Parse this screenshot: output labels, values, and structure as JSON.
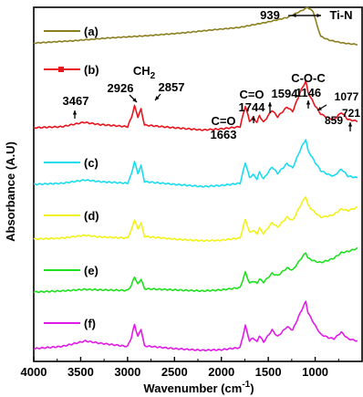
{
  "chart_data": {
    "type": "line",
    "xlabel": "Wavenumber (cm",
    "xlabel_sup": "-1",
    "xlabel_close": ")",
    "ylabel": "Absorbance (A.U)",
    "x_reversed": true,
    "xlim": [
      4000,
      500
    ],
    "x_ticks": [
      4000,
      3500,
      3000,
      2500,
      2000,
      1500,
      1000
    ],
    "y_ticks": [],
    "grid": false,
    "legend_placement": "inline-left",
    "series": [
      {
        "name": "(a)",
        "color": "#8B7E1E",
        "points": [
          [
            4000,
            0.12
          ],
          [
            3600,
            0.18
          ],
          [
            3200,
            0.26
          ],
          [
            2800,
            0.32
          ],
          [
            2400,
            0.4
          ],
          [
            2100,
            0.48
          ],
          [
            1800,
            0.55
          ],
          [
            1500,
            0.7
          ],
          [
            1300,
            0.82
          ],
          [
            1150,
            1.0
          ],
          [
            1080,
            1.1
          ],
          [
            1020,
            0.98
          ],
          [
            980,
            0.6
          ],
          [
            939,
            0.3
          ],
          [
            850,
            0.2
          ],
          [
            700,
            0.12
          ],
          [
            550,
            0.08
          ]
        ]
      },
      {
        "name": "(b)",
        "color": "#E8141C",
        "points": [
          [
            4000,
            0.0
          ],
          [
            3700,
            0.02
          ],
          [
            3467,
            0.1
          ],
          [
            3300,
            0.06
          ],
          [
            3000,
            0.02
          ],
          [
            2960,
            0.18
          ],
          [
            2926,
            0.4
          ],
          [
            2890,
            0.2
          ],
          [
            2857,
            0.34
          ],
          [
            2820,
            0.05
          ],
          [
            2500,
            0.0
          ],
          [
            2200,
            -0.04
          ],
          [
            2000,
            -0.02
          ],
          [
            1800,
            0.02
          ],
          [
            1744,
            0.4
          ],
          [
            1700,
            0.12
          ],
          [
            1663,
            0.18
          ],
          [
            1620,
            0.1
          ],
          [
            1594,
            0.22
          ],
          [
            1550,
            0.1
          ],
          [
            1460,
            0.32
          ],
          [
            1400,
            0.2
          ],
          [
            1300,
            0.38
          ],
          [
            1240,
            0.3
          ],
          [
            1146,
            0.7
          ],
          [
            1100,
            0.85
          ],
          [
            1077,
            0.65
          ],
          [
            1000,
            0.4
          ],
          [
            940,
            0.25
          ],
          [
            859,
            0.18
          ],
          [
            800,
            0.15
          ],
          [
            721,
            0.28
          ],
          [
            650,
            0.15
          ],
          [
            550,
            0.12
          ]
        ]
      },
      {
        "name": "(c)",
        "color": "#1ADCF0",
        "points": [
          [
            4000,
            0.0
          ],
          [
            3700,
            0.02
          ],
          [
            3450,
            0.08
          ],
          [
            3300,
            0.05
          ],
          [
            3000,
            0.02
          ],
          [
            2960,
            0.18
          ],
          [
            2926,
            0.42
          ],
          [
            2890,
            0.2
          ],
          [
            2857,
            0.34
          ],
          [
            2820,
            0.05
          ],
          [
            2500,
            0.0
          ],
          [
            2200,
            -0.04
          ],
          [
            2000,
            -0.02
          ],
          [
            1800,
            0.02
          ],
          [
            1744,
            0.4
          ],
          [
            1700,
            0.12
          ],
          [
            1663,
            0.18
          ],
          [
            1620,
            0.1
          ],
          [
            1594,
            0.22
          ],
          [
            1550,
            0.1
          ],
          [
            1460,
            0.32
          ],
          [
            1400,
            0.2
          ],
          [
            1300,
            0.38
          ],
          [
            1240,
            0.3
          ],
          [
            1146,
            0.68
          ],
          [
            1100,
            0.82
          ],
          [
            1077,
            0.62
          ],
          [
            1000,
            0.4
          ],
          [
            940,
            0.25
          ],
          [
            859,
            0.18
          ],
          [
            800,
            0.15
          ],
          [
            721,
            0.28
          ],
          [
            650,
            0.15
          ],
          [
            550,
            0.12
          ]
        ]
      },
      {
        "name": "(d)",
        "color": "#F2F21A",
        "points": [
          [
            4000,
            0.0
          ],
          [
            3700,
            0.02
          ],
          [
            3450,
            0.07
          ],
          [
            3300,
            0.04
          ],
          [
            3000,
            0.02
          ],
          [
            2960,
            0.16
          ],
          [
            2926,
            0.36
          ],
          [
            2890,
            0.18
          ],
          [
            2857,
            0.3
          ],
          [
            2820,
            0.05
          ],
          [
            2500,
            0.0
          ],
          [
            2200,
            -0.03
          ],
          [
            2000,
            -0.02
          ],
          [
            1800,
            0.02
          ],
          [
            1744,
            0.36
          ],
          [
            1700,
            0.12
          ],
          [
            1663,
            0.16
          ],
          [
            1620,
            0.1
          ],
          [
            1594,
            0.2
          ],
          [
            1550,
            0.1
          ],
          [
            1460,
            0.3
          ],
          [
            1400,
            0.22
          ],
          [
            1300,
            0.4
          ],
          [
            1240,
            0.34
          ],
          [
            1146,
            0.65
          ],
          [
            1100,
            0.78
          ],
          [
            1077,
            0.62
          ],
          [
            1000,
            0.48
          ],
          [
            940,
            0.4
          ],
          [
            859,
            0.42
          ],
          [
            800,
            0.45
          ],
          [
            721,
            0.55
          ],
          [
            650,
            0.52
          ],
          [
            550,
            0.58
          ]
        ]
      },
      {
        "name": "(e)",
        "color": "#1FE01F",
        "points": [
          [
            4000,
            0.0
          ],
          [
            3700,
            0.02
          ],
          [
            3450,
            0.05
          ],
          [
            3300,
            0.04
          ],
          [
            3000,
            0.03
          ],
          [
            2960,
            0.12
          ],
          [
            2926,
            0.28
          ],
          [
            2890,
            0.14
          ],
          [
            2857,
            0.24
          ],
          [
            2820,
            0.06
          ],
          [
            2500,
            0.04
          ],
          [
            2200,
            0.02
          ],
          [
            2000,
            0.04
          ],
          [
            1800,
            0.08
          ],
          [
            1744,
            0.36
          ],
          [
            1700,
            0.16
          ],
          [
            1663,
            0.2
          ],
          [
            1620,
            0.16
          ],
          [
            1594,
            0.24
          ],
          [
            1550,
            0.18
          ],
          [
            1460,
            0.34
          ],
          [
            1400,
            0.3
          ],
          [
            1300,
            0.44
          ],
          [
            1240,
            0.4
          ],
          [
            1146,
            0.62
          ],
          [
            1100,
            0.72
          ],
          [
            1077,
            0.62
          ],
          [
            1000,
            0.56
          ],
          [
            940,
            0.54
          ],
          [
            859,
            0.58
          ],
          [
            800,
            0.62
          ],
          [
            721,
            0.72
          ],
          [
            650,
            0.74
          ],
          [
            550,
            0.8
          ]
        ]
      },
      {
        "name": "(f)",
        "color": "#E21AE8",
        "points": [
          [
            4000,
            0.0
          ],
          [
            3700,
            0.04
          ],
          [
            3450,
            0.14
          ],
          [
            3300,
            0.1
          ],
          [
            3000,
            0.04
          ],
          [
            2960,
            0.2
          ],
          [
            2926,
            0.44
          ],
          [
            2890,
            0.22
          ],
          [
            2857,
            0.36
          ],
          [
            2820,
            0.05
          ],
          [
            2500,
            0.0
          ],
          [
            2200,
            -0.03
          ],
          [
            2000,
            -0.02
          ],
          [
            1800,
            0.02
          ],
          [
            1744,
            0.42
          ],
          [
            1700,
            0.14
          ],
          [
            1663,
            0.2
          ],
          [
            1620,
            0.12
          ],
          [
            1594,
            0.24
          ],
          [
            1550,
            0.12
          ],
          [
            1460,
            0.34
          ],
          [
            1400,
            0.22
          ],
          [
            1300,
            0.4
          ],
          [
            1240,
            0.34
          ],
          [
            1146,
            0.7
          ],
          [
            1100,
            0.86
          ],
          [
            1077,
            0.66
          ],
          [
            1000,
            0.42
          ],
          [
            940,
            0.26
          ],
          [
            859,
            0.2
          ],
          [
            800,
            0.18
          ],
          [
            721,
            0.3
          ],
          [
            650,
            0.18
          ],
          [
            550,
            0.14
          ]
        ]
      }
    ],
    "annotations": [
      {
        "text": "939",
        "x": 939,
        "series": 0
      },
      {
        "text": "Ti-N",
        "x": 939,
        "series": 0
      },
      {
        "text": "CH",
        "sub": "2",
        "x": 2890,
        "series": 1
      },
      {
        "text": "2926",
        "x": 2926,
        "series": 1
      },
      {
        "text": "2857",
        "x": 2857,
        "series": 1
      },
      {
        "text": "3467",
        "x": 3467,
        "series": 1
      },
      {
        "text": "C=O",
        "x": 1744,
        "series": 1
      },
      {
        "text": "1744",
        "x": 1744,
        "series": 1
      },
      {
        "text": "C=O",
        "x": 1663,
        "series": 1
      },
      {
        "text": "1663",
        "x": 1663,
        "series": 1
      },
      {
        "text": "1594",
        "x": 1594,
        "series": 1
      },
      {
        "text": "C-O-C",
        "x": 1146,
        "series": 1
      },
      {
        "text": "1146",
        "x": 1146,
        "series": 1
      },
      {
        "text": "1077",
        "x": 1077,
        "series": 1
      },
      {
        "text": "859",
        "x": 859,
        "series": 1
      },
      {
        "text": "721",
        "x": 721,
        "series": 1
      }
    ]
  }
}
